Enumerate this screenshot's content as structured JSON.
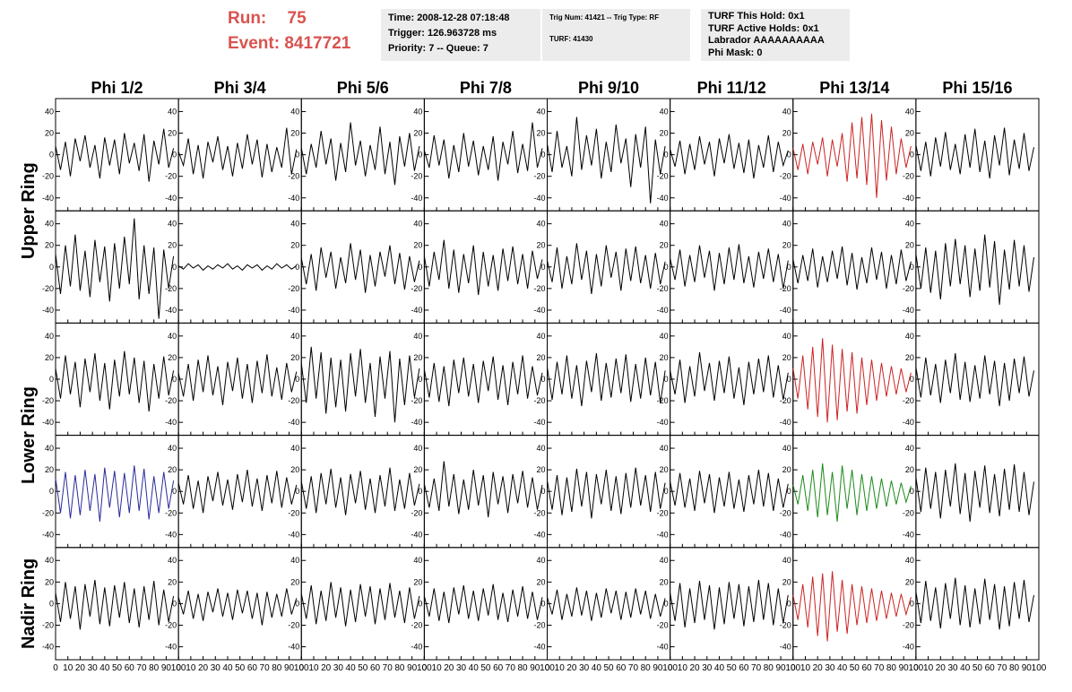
{
  "header": {
    "run_label": "Run:",
    "run": "75",
    "event_label": "Event:",
    "event": "8417721",
    "boxes": [
      [
        "Time: 2008-12-28 07:18:48",
        "Trigger: 126.963728 ms",
        "Priority: 7 -- Queue: 7"
      ],
      [
        "Trig Num: 41421 -- Trig Type: RF",
        "TURF: 41430"
      ],
      [
        "TURF This Hold: 0x1",
        "TURF Active Holds: 0x1",
        "Labrador AAAAAAAAAA",
        "Phi Mask: 0"
      ]
    ]
  },
  "chart_data": {
    "type": "line",
    "columns": [
      "Phi 1/2",
      "Phi 3/4",
      "Phi 5/6",
      "Phi 7/8",
      "Phi 9/10",
      "Phi 11/12",
      "Phi 13/14",
      "Phi 15/16"
    ],
    "row_labels": [
      "Upper Ring",
      "Lower Ring",
      "Nadir Ring"
    ],
    "x": [
      0,
      4,
      8,
      12,
      16,
      20,
      24,
      28,
      32,
      36,
      40,
      44,
      48,
      52,
      56,
      60,
      64,
      68,
      72,
      76,
      80,
      84,
      88,
      92,
      96
    ],
    "xlim": [
      0,
      100
    ],
    "xticks": [
      0,
      10,
      20,
      30,
      40,
      50,
      60,
      70,
      80,
      90,
      100
    ],
    "ylim": [
      -52,
      52
    ],
    "yticks": [
      -40,
      -20,
      0,
      20,
      40
    ],
    "series": [
      {
        "color": "#000000",
        "values": [
          8,
          -14,
          12,
          -20,
          15,
          -6,
          18,
          -12,
          9,
          -22,
          16,
          -10,
          14,
          -18,
          20,
          -8,
          11,
          -15,
          19,
          -25,
          13,
          -9,
          24,
          -12,
          6
        ]
      },
      {
        "color": "#000000",
        "values": [
          3,
          -10,
          15,
          -18,
          9,
          -22,
          12,
          -7,
          17,
          -14,
          8,
          -20,
          11,
          -13,
          19,
          -9,
          14,
          -21,
          10,
          -16,
          7,
          -12,
          25,
          -18,
          5
        ]
      },
      {
        "color": "#000000",
        "values": [
          6,
          -18,
          10,
          -12,
          22,
          -9,
          15,
          -24,
          11,
          -16,
          30,
          -10,
          13,
          -20,
          9,
          -14,
          26,
          -18,
          12,
          -28,
          17,
          -11,
          20,
          -15,
          8
        ]
      },
      {
        "color": "#000000",
        "values": [
          4,
          -12,
          18,
          -10,
          14,
          -22,
          9,
          -16,
          20,
          -11,
          13,
          -19,
          8,
          -14,
          17,
          -24,
          12,
          -9,
          22,
          -17,
          10,
          -15,
          30,
          -12,
          6
        ]
      },
      {
        "color": "#000000",
        "values": [
          10,
          -16,
          22,
          -12,
          8,
          -20,
          35,
          -14,
          18,
          -10,
          24,
          -22,
          12,
          -16,
          28,
          -8,
          15,
          -30,
          19,
          -12,
          26,
          -45,
          14,
          -18,
          8
        ]
      },
      {
        "color": "#000000",
        "values": [
          5,
          -11,
          13,
          -18,
          10,
          -14,
          17,
          -9,
          12,
          -20,
          15,
          -8,
          19,
          -13,
          11,
          -17,
          14,
          -22,
          9,
          -12,
          18,
          -16,
          12,
          -10,
          4
        ]
      },
      {
        "color": "#cc2222",
        "values": [
          6,
          -14,
          10,
          -18,
          12,
          -9,
          16,
          -20,
          14,
          -11,
          20,
          -25,
          30,
          -22,
          35,
          -28,
          38,
          -40,
          32,
          -24,
          26,
          -18,
          15,
          -12,
          8
        ]
      },
      {
        "color": "#000000",
        "values": [
          9,
          -15,
          12,
          -20,
          16,
          -11,
          21,
          -14,
          10,
          -18,
          19,
          -12,
          24,
          -16,
          13,
          -22,
          18,
          -10,
          25,
          -19,
          14,
          -13,
          20,
          -15,
          7
        ]
      },
      {
        "color": "#000000",
        "values": [
          12,
          -25,
          20,
          -18,
          30,
          -22,
          15,
          -28,
          25,
          -14,
          19,
          -32,
          22,
          -20,
          28,
          -16,
          45,
          -30,
          20,
          -25,
          18,
          -48,
          16,
          -20,
          10
        ]
      },
      {
        "color": "#000000",
        "values": [
          1,
          -2,
          3,
          -1,
          2,
          -3,
          1,
          -2,
          2,
          -1,
          3,
          -2,
          1,
          -3,
          2,
          -1,
          2,
          -3,
          1,
          -2,
          3,
          -1,
          2,
          -2,
          1
        ]
      },
      {
        "color": "#000000",
        "values": [
          8,
          -16,
          12,
          -22,
          18,
          -10,
          14,
          -20,
          9,
          -15,
          22,
          -12,
          16,
          -24,
          11,
          -18,
          14,
          -9,
          20,
          -16,
          13,
          -21,
          10,
          -14,
          6
        ]
      },
      {
        "color": "#000000",
        "values": [
          10,
          -18,
          14,
          -12,
          25,
          -20,
          16,
          -24,
          12,
          -15,
          20,
          -26,
          14,
          -18,
          11,
          -22,
          17,
          -13,
          19,
          -16,
          12,
          -20,
          15,
          -11,
          7
        ]
      },
      {
        "color": "#000000",
        "values": [
          6,
          -14,
          18,
          -20,
          10,
          -16,
          22,
          -12,
          15,
          -25,
          12,
          -18,
          20,
          -10,
          14,
          -22,
          17,
          -13,
          19,
          -15,
          11,
          -20,
          13,
          -16,
          5
        ]
      },
      {
        "color": "#000000",
        "values": [
          8,
          -12,
          16,
          -18,
          11,
          -14,
          20,
          -10,
          15,
          -22,
          13,
          -16,
          18,
          -12,
          21,
          -15,
          10,
          -19,
          14,
          -11,
          17,
          -14,
          12,
          -20,
          6
        ]
      },
      {
        "color": "#000000",
        "values": [
          7,
          -15,
          11,
          -13,
          17,
          -19,
          10,
          -14,
          15,
          -11,
          19,
          -17,
          13,
          -21,
          9,
          -15,
          18,
          -12,
          14,
          -20,
          11,
          -16,
          16,
          -13,
          5
        ]
      },
      {
        "color": "#000000",
        "values": [
          12,
          -20,
          18,
          -24,
          15,
          -30,
          22,
          -18,
          26,
          -16,
          20,
          -28,
          17,
          -22,
          30,
          -19,
          24,
          -35,
          16,
          -21,
          25,
          -18,
          20,
          -23,
          9
        ]
      },
      {
        "color": "#000000",
        "values": [
          10,
          -18,
          22,
          -14,
          16,
          -26,
          19,
          -12,
          24,
          -20,
          15,
          -28,
          18,
          -16,
          26,
          -14,
          20,
          -22,
          17,
          -30,
          14,
          -18,
          21,
          -15,
          8
        ]
      },
      {
        "color": "#000000",
        "values": [
          6,
          -16,
          14,
          -20,
          18,
          -12,
          22,
          -15,
          12,
          -24,
          16,
          -11,
          20,
          -18,
          14,
          -22,
          17,
          -13,
          23,
          -16,
          11,
          -19,
          15,
          -12,
          7
        ]
      },
      {
        "color": "#000000",
        "values": [
          14,
          -22,
          30,
          -18,
          25,
          -32,
          20,
          -26,
          18,
          -30,
          24,
          -16,
          28,
          -22,
          15,
          -35,
          21,
          -18,
          26,
          -40,
          19,
          -24,
          22,
          -17,
          10
        ]
      },
      {
        "color": "#000000",
        "values": [
          9,
          -17,
          15,
          -21,
          12,
          -25,
          18,
          -13,
          20,
          -16,
          14,
          -22,
          17,
          -11,
          21,
          -19,
          13,
          -24,
          16,
          -14,
          22,
          -18,
          12,
          -15,
          6
        ]
      },
      {
        "color": "#000000",
        "values": [
          11,
          -19,
          16,
          -14,
          22,
          -18,
          13,
          -25,
          17,
          -12,
          24,
          -20,
          15,
          -17,
          19,
          -13,
          23,
          -21,
          14,
          -18,
          20,
          -15,
          16,
          -22,
          8
        ]
      },
      {
        "color": "#000000",
        "values": [
          8,
          -14,
          18,
          -22,
          12,
          -16,
          25,
          -11,
          15,
          -20,
          17,
          -13,
          21,
          -18,
          11,
          -24,
          16,
          -14,
          19,
          -12,
          22,
          -17,
          13,
          -19,
          6
        ]
      },
      {
        "color": "#cc2222",
        "values": [
          10,
          -18,
          22,
          -28,
          30,
          -35,
          38,
          -40,
          32,
          -38,
          28,
          -30,
          25,
          -32,
          20,
          -24,
          18,
          -20,
          15,
          -16,
          12,
          -14,
          10,
          -12,
          6
        ]
      },
      {
        "color": "#000000",
        "values": [
          11,
          -17,
          20,
          -15,
          14,
          -22,
          18,
          -13,
          24,
          -19,
          16,
          -21,
          13,
          -18,
          22,
          -14,
          17,
          -25,
          15,
          -20,
          19,
          -13,
          21,
          -16,
          8
        ]
      },
      {
        "color": "#2a2a9a",
        "values": [
          12,
          -20,
          18,
          -25,
          15,
          -22,
          20,
          -18,
          16,
          -28,
          22,
          -15,
          19,
          -24,
          17,
          -20,
          24,
          -18,
          21,
          -26,
          14,
          -20,
          18,
          -16,
          10
        ]
      },
      {
        "color": "#000000",
        "values": [
          8,
          -12,
          15,
          -16,
          10,
          -20,
          14,
          -9,
          18,
          -13,
          11,
          -17,
          16,
          -10,
          20,
          -14,
          12,
          -18,
          15,
          -11,
          19,
          -15,
          13,
          -12,
          6
        ]
      },
      {
        "color": "#000000",
        "values": [
          9,
          -16,
          14,
          -20,
          17,
          -12,
          21,
          -15,
          13,
          -22,
          16,
          -11,
          19,
          -17,
          12,
          -20,
          15,
          -14,
          22,
          -18,
          11,
          -16,
          17,
          -13,
          7
        ]
      },
      {
        "color": "#000000",
        "values": [
          7,
          -15,
          12,
          -18,
          28,
          -14,
          16,
          -21,
          11,
          -17,
          20,
          -13,
          15,
          -24,
          18,
          -12,
          14,
          -20,
          16,
          -11,
          19,
          -15,
          13,
          -17,
          6
        ]
      },
      {
        "color": "#000000",
        "values": [
          10,
          -17,
          15,
          -22,
          13,
          -19,
          21,
          -14,
          18,
          -25,
          16,
          -12,
          20,
          -18,
          14,
          -21,
          17,
          -15,
          22,
          -13,
          15,
          -19,
          18,
          -16,
          8
        ]
      },
      {
        "color": "#000000",
        "values": [
          9,
          -13,
          17,
          -15,
          12,
          -18,
          19,
          -11,
          16,
          -20,
          13,
          -14,
          18,
          -16,
          11,
          -19,
          15,
          -12,
          20,
          -14,
          17,
          -18,
          12,
          -15,
          7
        ]
      },
      {
        "color": "#1a8a1a",
        "values": [
          6,
          -12,
          15,
          -18,
          20,
          -24,
          26,
          -22,
          18,
          -28,
          24,
          -16,
          20,
          -22,
          16,
          -18,
          14,
          -16,
          12,
          -14,
          10,
          -12,
          8,
          -10,
          5
        ]
      },
      {
        "color": "#000000",
        "values": [
          13,
          -19,
          22,
          -16,
          18,
          -25,
          20,
          -14,
          26,
          -21,
          17,
          -28,
          19,
          -15,
          24,
          -20,
          16,
          -23,
          21,
          -17,
          25,
          -19,
          18,
          -22,
          9
        ]
      },
      {
        "color": "#000000",
        "values": [
          10,
          -17,
          20,
          -14,
          16,
          -24,
          18,
          -12,
          22,
          -19,
          15,
          -21,
          17,
          -13,
          20,
          -18,
          14,
          -22,
          16,
          -15,
          21,
          -20,
          13,
          -17,
          7
        ]
      },
      {
        "color": "#000000",
        "values": [
          6,
          -10,
          12,
          -14,
          9,
          -16,
          11,
          -8,
          14,
          -12,
          10,
          -15,
          13,
          -9,
          12,
          -14,
          10,
          -20,
          11,
          -13,
          9,
          -12,
          14,
          -10,
          5
        ]
      },
      {
        "color": "#000000",
        "values": [
          9,
          -14,
          17,
          -19,
          12,
          -16,
          20,
          -13,
          15,
          -21,
          13,
          -17,
          18,
          -12,
          16,
          -19,
          14,
          -15,
          19,
          -13,
          12,
          -18,
          15,
          -14,
          7
        ]
      },
      {
        "color": "#000000",
        "values": [
          7,
          -12,
          14,
          -16,
          11,
          -18,
          15,
          -10,
          17,
          -14,
          12,
          -16,
          14,
          -11,
          18,
          -15,
          10,
          -17,
          13,
          -12,
          16,
          -14,
          11,
          -15,
          6
        ]
      },
      {
        "color": "#000000",
        "values": [
          6,
          -10,
          13,
          -15,
          9,
          -12,
          15,
          -11,
          12,
          -16,
          10,
          -13,
          14,
          -9,
          12,
          -15,
          11,
          -13,
          14,
          -10,
          12,
          -14,
          9,
          -12,
          5
        ]
      },
      {
        "color": "#000000",
        "values": [
          10,
          -16,
          19,
          -22,
          14,
          -18,
          21,
          -15,
          17,
          -24,
          15,
          -19,
          20,
          -14,
          18,
          -21,
          16,
          -17,
          22,
          -15,
          19,
          -20,
          14,
          -18,
          8
        ]
      },
      {
        "color": "#cc2222",
        "values": [
          8,
          -15,
          18,
          -22,
          25,
          -30,
          28,
          -35,
          30,
          -26,
          22,
          -28,
          18,
          -20,
          16,
          -18,
          14,
          -16,
          12,
          -14,
          10,
          -12,
          9,
          -10,
          6
        ]
      },
      {
        "color": "#000000",
        "values": [
          11,
          -18,
          21,
          -16,
          15,
          -23,
          19,
          -14,
          24,
          -20,
          17,
          -22,
          14,
          -19,
          23,
          -15,
          18,
          -24,
          16,
          -21,
          20,
          -14,
          22,
          -17,
          8
        ]
      }
    ]
  }
}
